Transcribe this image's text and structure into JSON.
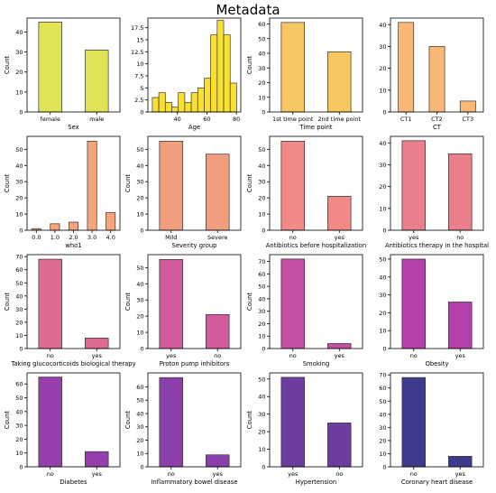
{
  "figure": {
    "title": "Metadata"
  },
  "chart_data": [
    {
      "type": "bar",
      "categories": [
        "female",
        "male"
      ],
      "values": [
        45,
        31
      ],
      "xlabel": "Sex",
      "ylabel": "Count",
      "ylim": [
        0,
        47
      ],
      "yticks": [
        0,
        10,
        20,
        30,
        40
      ],
      "color": "#dfe356"
    },
    {
      "type": "histogram",
      "bins": [
        [
          23,
          27.4
        ],
        [
          27.4,
          31.8
        ],
        [
          31.8,
          36.2
        ],
        [
          36.2,
          40.6
        ],
        [
          40.6,
          45
        ],
        [
          45,
          49.4
        ],
        [
          49.4,
          53.8
        ],
        [
          53.8,
          58.2
        ],
        [
          58.2,
          62.6
        ],
        [
          62.6,
          67
        ],
        [
          67,
          71.4
        ],
        [
          71.4,
          75.8
        ],
        [
          75.8,
          80.2
        ]
      ],
      "values": [
        3,
        4,
        2,
        1,
        4,
        2,
        4,
        5,
        7,
        16,
        19,
        16,
        6
      ],
      "xlabel": "Age",
      "ylabel": "",
      "xlim": [
        20,
        83
      ],
      "ylim": [
        0,
        19.5
      ],
      "xticks": [
        40,
        60,
        80
      ],
      "yticks": [
        0,
        2.5,
        5.0,
        7.5,
        10.0,
        12.5,
        15.0,
        17.5
      ],
      "color": "#f8df30"
    },
    {
      "type": "bar",
      "categories": [
        "1st time point",
        "2nd time point"
      ],
      "values": [
        61,
        41
      ],
      "xlabel": "Time point",
      "ylabel": "Count",
      "ylim": [
        0,
        64
      ],
      "yticks": [
        0,
        10,
        20,
        30,
        40,
        50,
        60
      ],
      "color": "#f7c761"
    },
    {
      "type": "bar",
      "categories": [
        "CT1",
        "CT2",
        "CT3"
      ],
      "values": [
        41,
        30,
        5
      ],
      "xlabel": "CT",
      "ylabel": "",
      "ylim": [
        0,
        43
      ],
      "yticks": [
        0,
        10,
        20,
        30,
        40
      ],
      "color": "#f9b877"
    },
    {
      "type": "bar",
      "categories": [
        "0.0",
        "1.0",
        "2.0",
        "3.0",
        "4.0"
      ],
      "values": [
        1,
        4,
        5,
        55,
        11
      ],
      "xlabel": "who1",
      "ylabel": "Count",
      "ylim": [
        0,
        58
      ],
      "yticks": [
        0,
        10,
        20,
        30,
        40,
        50
      ],
      "color": "#f5a577"
    },
    {
      "type": "bar",
      "categories": [
        "Mild",
        "Severe"
      ],
      "values": [
        55,
        47
      ],
      "xlabel": "Severity group",
      "ylabel": "Count",
      "ylim": [
        0,
        58
      ],
      "yticks": [
        0,
        10,
        20,
        30,
        40,
        50
      ],
      "color": "#f39d7f"
    },
    {
      "type": "bar",
      "categories": [
        "no",
        "yes"
      ],
      "values": [
        55,
        21
      ],
      "xlabel": "Antibiotics before hospitalization",
      "ylabel": "Count",
      "ylim": [
        0,
        58
      ],
      "yticks": [
        0,
        10,
        20,
        30,
        40,
        50
      ],
      "color": "#ef8a87"
    },
    {
      "type": "bar",
      "categories": [
        "yes",
        "no"
      ],
      "values": [
        41,
        35
      ],
      "xlabel": "Antibiotics therapy in the hospital",
      "ylabel": "",
      "ylim": [
        0,
        43
      ],
      "yticks": [
        0,
        10,
        20,
        30,
        40
      ],
      "color": "#e97f8b"
    },
    {
      "type": "bar",
      "categories": [
        "no",
        "yes"
      ],
      "values": [
        68,
        8
      ],
      "xlabel": "Taking glucocorticoids biological therapy",
      "ylabel": "Count",
      "ylim": [
        0,
        71.5
      ],
      "yticks": [
        0,
        10,
        20,
        30,
        40,
        50,
        60,
        70
      ],
      "color": "#df6b94"
    },
    {
      "type": "bar",
      "categories": [
        "yes",
        "no"
      ],
      "values": [
        55,
        21
      ],
      "xlabel": "Proton pump inhibitors",
      "ylabel": "Count",
      "ylim": [
        0,
        58
      ],
      "yticks": [
        0,
        10,
        20,
        30,
        40,
        50
      ],
      "color": "#d35a9c"
    },
    {
      "type": "bar",
      "categories": [
        "no",
        "yes"
      ],
      "values": [
        72,
        4
      ],
      "xlabel": "Smoking",
      "ylabel": "Count",
      "ylim": [
        0,
        75.5
      ],
      "yticks": [
        0,
        10,
        20,
        30,
        40,
        50,
        60,
        70
      ],
      "color": "#c34ea3"
    },
    {
      "type": "bar",
      "categories": [
        "no",
        "yes"
      ],
      "values": [
        50,
        26
      ],
      "xlabel": "Obesity",
      "ylabel": "",
      "ylim": [
        0,
        52.5
      ],
      "yticks": [
        0,
        10,
        20,
        30,
        40,
        50
      ],
      "color": "#b340a9"
    },
    {
      "type": "bar",
      "categories": [
        "no",
        "yes"
      ],
      "values": [
        65,
        11
      ],
      "xlabel": "Diabetes",
      "ylabel": "Count",
      "ylim": [
        0,
        68
      ],
      "yticks": [
        0,
        10,
        20,
        30,
        40,
        50,
        60
      ],
      "color": "#963fac"
    },
    {
      "type": "bar",
      "categories": [
        "no",
        "yes"
      ],
      "values": [
        67,
        9
      ],
      "xlabel": "Inflammatory bowel disease",
      "ylabel": "Count",
      "ylim": [
        0,
        70.5
      ],
      "yticks": [
        0,
        10,
        20,
        30,
        40,
        50,
        60
      ],
      "color": "#8a3fab"
    },
    {
      "type": "bar",
      "categories": [
        "yes",
        "no"
      ],
      "values": [
        51,
        25
      ],
      "xlabel": "Hypertension",
      "ylabel": "Count",
      "ylim": [
        0,
        53.5
      ],
      "yticks": [
        0,
        10,
        20,
        30,
        40,
        50
      ],
      "color": "#6d3d9d"
    },
    {
      "type": "bar",
      "categories": [
        "no",
        "yes"
      ],
      "values": [
        68,
        8
      ],
      "xlabel": "Coronary heart disease",
      "ylabel": "",
      "ylim": [
        0,
        71.5
      ],
      "yticks": [
        0,
        10,
        20,
        30,
        40,
        50,
        60,
        70
      ],
      "color": "#3e3a8c"
    }
  ]
}
